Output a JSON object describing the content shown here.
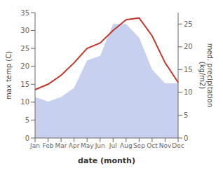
{
  "chart_data": {
    "type": "line",
    "categories": [
      "Jan",
      "Feb",
      "Mar",
      "Apr",
      "May",
      "Jun",
      "Jul",
      "Aug",
      "Sep",
      "Oct",
      "Nov",
      "Dec"
    ],
    "series": [
      {
        "type": "area",
        "axis": "y2",
        "color": "#c8d0f0",
        "values": [
          9.0,
          8.0,
          9.0,
          11.0,
          17.0,
          18.0,
          25.0,
          25.0,
          22.0,
          15.0,
          12.0,
          12.0
        ]
      },
      {
        "type": "line",
        "color": "#c0392b",
        "values": [
          13.5,
          15.0,
          17.5,
          21.0,
          25.0,
          26.5,
          30.0,
          33.0,
          33.5,
          28.5,
          21.0,
          15.5
        ]
      }
    ],
    "xlabel": "date (month)",
    "ylabel": "max temp (C)",
    "y2label": "med. precipitation\n(kg/m2)",
    "ylim": [
      0,
      35
    ],
    "yticks": [
      0,
      5,
      10,
      15,
      20,
      25,
      30,
      35
    ],
    "y2lim": [
      0,
      27.5
    ],
    "y2ticks": [
      0,
      5,
      10,
      15,
      20,
      25
    ]
  }
}
